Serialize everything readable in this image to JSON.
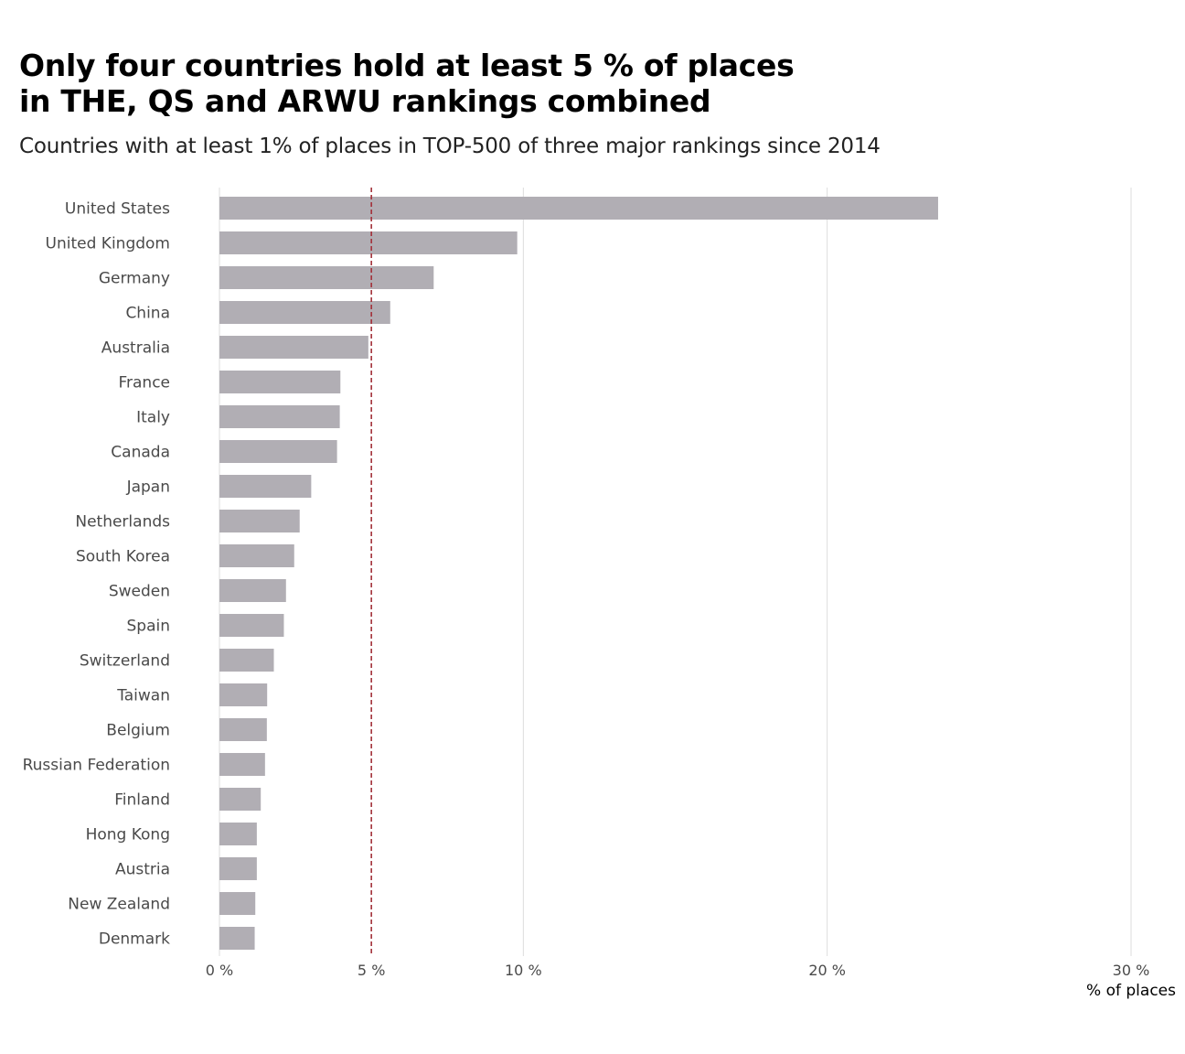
{
  "chart_data": {
    "type": "bar",
    "orientation": "horizontal",
    "title_lines": [
      "Only four countries hold at least 5 % of places",
      "in THE, QS and ARWU rankings combined"
    ],
    "subtitle": "Countries with at least 1% of places in TOP-500 of three major rankings since 2014",
    "xlabel": "% of places",
    "ylabel": "",
    "xlim": [
      0,
      30
    ],
    "x_ticks": [
      0,
      5,
      10,
      20,
      30
    ],
    "x_tick_labels": [
      "0 %",
      "5 %",
      "10 %",
      "20 %",
      "30 %"
    ],
    "grid": "vertical",
    "reference_line": {
      "value": 5,
      "style": "dashed",
      "color": "#a3313a"
    },
    "bar_color": "#b1aeb4",
    "gridline_color": "#dddddd",
    "categories": [
      "United States",
      "United Kingdom",
      "Germany",
      "China",
      "Australia",
      "France",
      "Italy",
      "Canada",
      "Japan",
      "Netherlands",
      "South Korea",
      "Sweden",
      "Spain",
      "Switzerland",
      "Taiwan",
      "Belgium",
      "Russian Federation",
      "Finland",
      "Hong Kong",
      "Austria",
      "New Zealand",
      "Denmark"
    ],
    "values": [
      23.65,
      9.8,
      7.05,
      5.62,
      4.9,
      3.98,
      3.96,
      3.87,
      3.02,
      2.64,
      2.46,
      2.19,
      2.12,
      1.79,
      1.57,
      1.56,
      1.5,
      1.36,
      1.23,
      1.23,
      1.18,
      1.16
    ]
  }
}
